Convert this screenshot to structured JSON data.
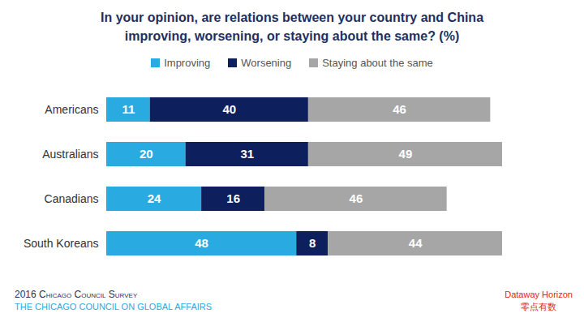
{
  "chart_data": {
    "type": "bar",
    "title": "In your opinion, are relations between your country and China improving, worsening, or staying about the same? (%)",
    "categories": [
      "Americans",
      "Australians",
      "Canadians",
      "South Koreans"
    ],
    "series": [
      {
        "name": "Improving",
        "color": "#29abe2",
        "values": [
          11,
          20,
          24,
          48
        ]
      },
      {
        "name": "Worsening",
        "color": "#0d1f5c",
        "values": [
          40,
          31,
          16,
          8
        ]
      },
      {
        "name": "Staying about the same",
        "color": "#a6a6a6",
        "values": [
          46,
          49,
          46,
          44
        ]
      }
    ],
    "xlim": [
      0,
      100
    ],
    "orientation": "horizontal",
    "stacked": true,
    "data_labels": true,
    "tick_labels": "y",
    "legend": "top",
    "source": [
      "2016 Chicago Council Survey",
      "THE CHICAGO COUNCIL ON GLOBAL AFFAIRS"
    ],
    "watermark": [
      "Dataway Horizon",
      "零点有数"
    ]
  }
}
